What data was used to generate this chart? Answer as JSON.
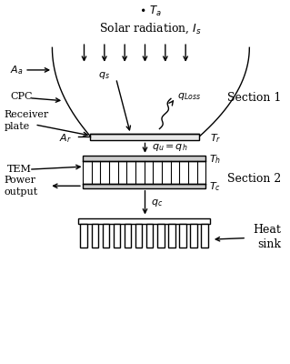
{
  "bg_color": "#ffffff",
  "line_color": "#000000",
  "ta_label": "$\\bullet\\;T_a$",
  "solar_label": "Solar radiation, $I_s$",
  "section1_label": "Section 1",
  "section2_label": "Section 2",
  "heatsink_label": "Heat\nsink",
  "cpc_label": "CPC",
  "receiver_label": "Receiver\nplate",
  "aa_label": "$A_a$",
  "ar_label": "$A_r$",
  "tr_label": "$T_r$",
  "qs_label": "$q_s$",
  "qloss_label": "$q_{Loss}$",
  "qu_label": "$q_u = q_h$",
  "tem_label": "TEM",
  "th_label": "$T_h$",
  "tc_label": "$T_c$",
  "power_label": "Power\noutput",
  "qc_label": "$q_c$"
}
